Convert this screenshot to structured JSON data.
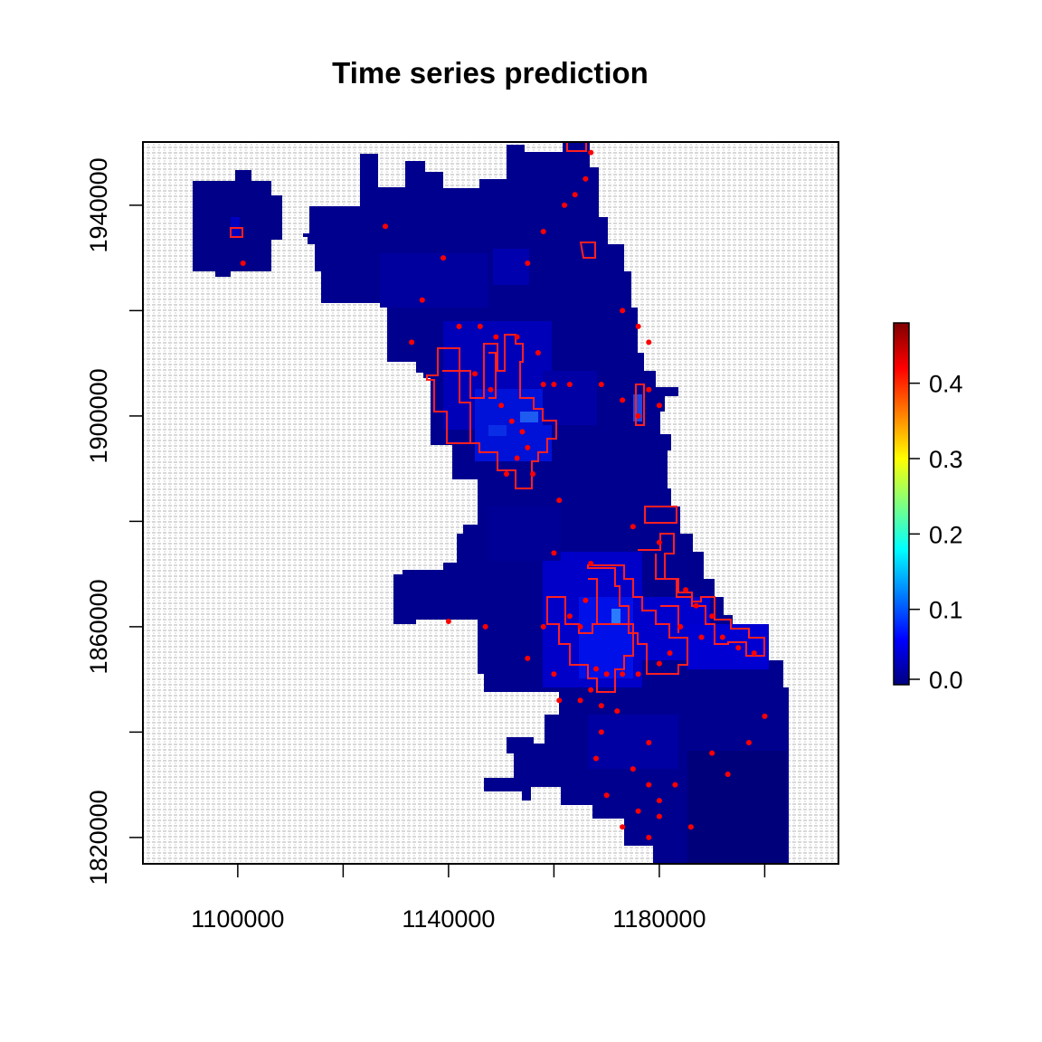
{
  "chart_data": {
    "type": "heatmap",
    "title": "Time series prediction",
    "xlabel": "",
    "ylabel": "",
    "x_ticks": [
      1100000,
      1140000,
      1180000
    ],
    "y_ticks": [
      1820000,
      1860000,
      1900000,
      1940000
    ],
    "x_tick_labels": [
      "1100000",
      "1140000",
      "1180000"
    ],
    "y_tick_labels": [
      "1820000",
      "1860000",
      "1900000",
      "1940000"
    ],
    "xlim": [
      1082000,
      1214000
    ],
    "ylim": [
      1815000,
      1952000
    ],
    "colorbar": {
      "range": [
        0,
        0.48
      ],
      "ticks": [
        0.0,
        0.1,
        0.2,
        0.3,
        0.4
      ],
      "tick_labels": [
        "0.0",
        "0.1",
        "0.2",
        "0.3",
        "0.4"
      ],
      "palette": [
        "#00007F",
        "#0000FF",
        "#007FFF",
        "#00FFFF",
        "#7FFF7F",
        "#FFFF00",
        "#FF7F00",
        "#FF0000",
        "#7F0000"
      ]
    },
    "background_pattern": "light gray grid texture outside city boundary",
    "city_fill_color": "#000099",
    "hotspot_outline_color": "#FF2020",
    "points_color": "#FF0000",
    "points": [
      [
        1101000,
        1929000
      ],
      [
        1128000,
        1936000
      ],
      [
        1139000,
        1930000
      ],
      [
        1135000,
        1922000
      ],
      [
        1133000,
        1914000
      ],
      [
        1142000,
        1917000
      ],
      [
        1146000,
        1917000
      ],
      [
        1149000,
        1915000
      ],
      [
        1153000,
        1915000
      ],
      [
        1155000,
        1929000
      ],
      [
        1157000,
        1912000
      ],
      [
        1163000,
        1906000
      ],
      [
        1169000,
        1906000
      ],
      [
        1173000,
        1903000
      ],
      [
        1176000,
        1900000
      ],
      [
        1178000,
        1905000
      ],
      [
        1180000,
        1902000
      ],
      [
        1173000,
        1920000
      ],
      [
        1176000,
        1917000
      ],
      [
        1178000,
        1914000
      ],
      [
        1162000,
        1940000
      ],
      [
        1164000,
        1942000
      ],
      [
        1166000,
        1945000
      ],
      [
        1167000,
        1950000
      ],
      [
        1158000,
        1935000
      ],
      [
        1145000,
        1908000
      ],
      [
        1148000,
        1905000
      ],
      [
        1150000,
        1902000
      ],
      [
        1152000,
        1899000
      ],
      [
        1154000,
        1897000
      ],
      [
        1155000,
        1894000
      ],
      [
        1153000,
        1892000
      ],
      [
        1151000,
        1889000
      ],
      [
        1156000,
        1889000
      ],
      [
        1158000,
        1906000
      ],
      [
        1160000,
        1906000
      ],
      [
        1161000,
        1884000
      ],
      [
        1160000,
        1874000
      ],
      [
        1167000,
        1872000
      ],
      [
        1175000,
        1879000
      ],
      [
        1180000,
        1876000
      ],
      [
        1185000,
        1867000
      ],
      [
        1187000,
        1864000
      ],
      [
        1190000,
        1862000
      ],
      [
        1188000,
        1858000
      ],
      [
        1195000,
        1856000
      ],
      [
        1198000,
        1855000
      ],
      [
        1192000,
        1858000
      ],
      [
        1184000,
        1860000
      ],
      [
        1182000,
        1855000
      ],
      [
        1180000,
        1853000
      ],
      [
        1176000,
        1851000
      ],
      [
        1173000,
        1851000
      ],
      [
        1170000,
        1851000
      ],
      [
        1168000,
        1852000
      ],
      [
        1167000,
        1848000
      ],
      [
        1165000,
        1846000
      ],
      [
        1169000,
        1845000
      ],
      [
        1172000,
        1844000
      ],
      [
        1169000,
        1840000
      ],
      [
        1165000,
        1860000
      ],
      [
        1163000,
        1862000
      ],
      [
        1166000,
        1865000
      ],
      [
        1158000,
        1860000
      ],
      [
        1155000,
        1854000
      ],
      [
        1160000,
        1851000
      ],
      [
        1161000,
        1846000
      ],
      [
        1140000,
        1861000
      ],
      [
        1147000,
        1860000
      ],
      [
        1168000,
        1835000
      ],
      [
        1178000,
        1830000
      ],
      [
        1180000,
        1827000
      ],
      [
        1176000,
        1825000
      ],
      [
        1173000,
        1822000
      ],
      [
        1178000,
        1820000
      ],
      [
        1175000,
        1833000
      ],
      [
        1183000,
        1830000
      ],
      [
        1190000,
        1836000
      ],
      [
        1193000,
        1832000
      ],
      [
        1197000,
        1838000
      ],
      [
        1200000,
        1843000
      ],
      [
        1186000,
        1822000
      ],
      [
        1180000,
        1824000
      ],
      [
        1170000,
        1828000
      ],
      [
        1178000,
        1838000
      ]
    ]
  }
}
